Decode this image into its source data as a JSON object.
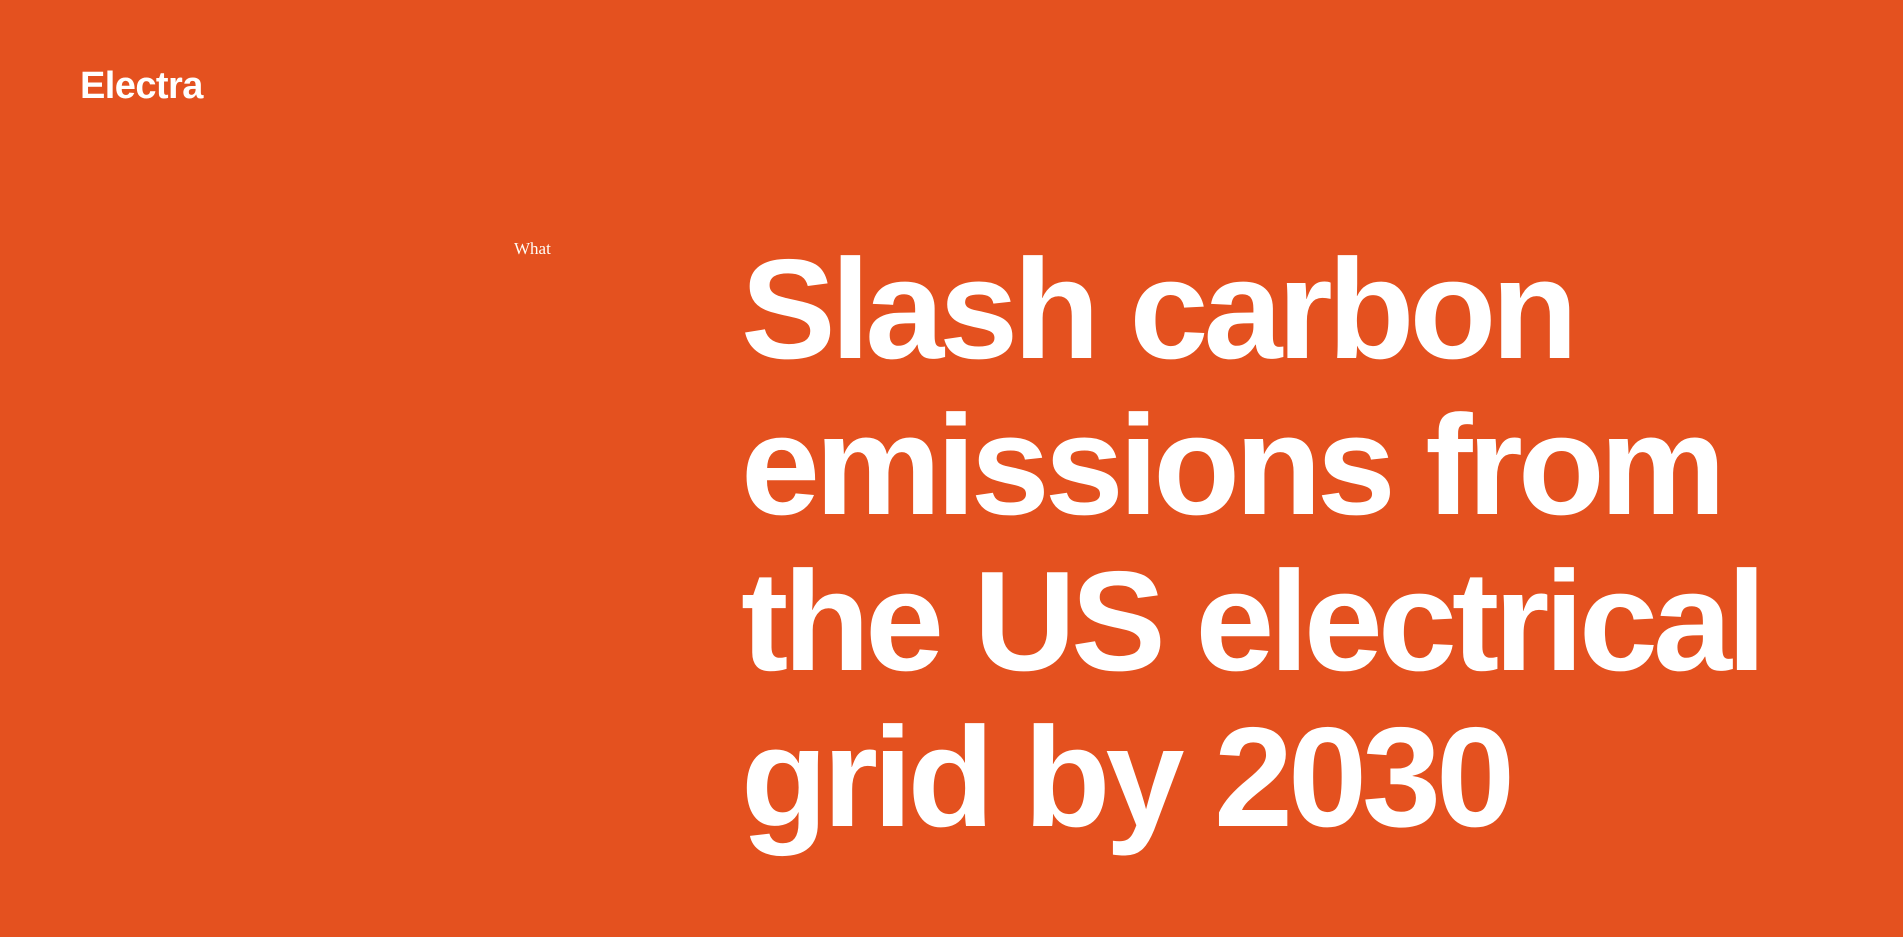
{
  "page": {
    "background_color": "#E4511F",
    "text_color": "#FFFFFF"
  },
  "header": {
    "logo": "Electra"
  },
  "hero": {
    "section_label": "What",
    "headline": "Slash carbon emissions from the US electrical grid by 2030",
    "headline_lines": [
      "Slash carbon",
      "emissions from",
      "the US electrical",
      "grid by 2030"
    ]
  }
}
